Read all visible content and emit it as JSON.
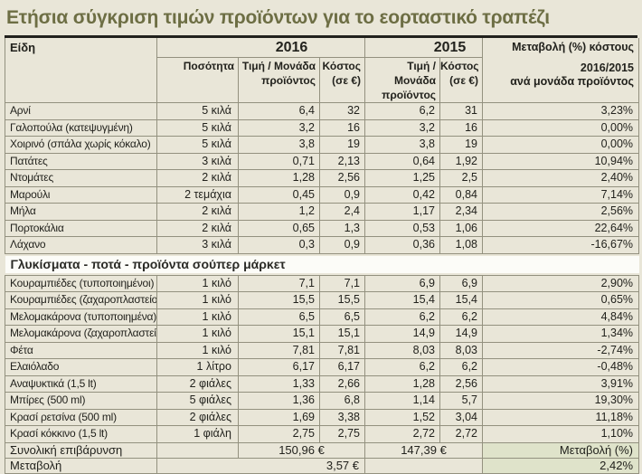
{
  "title": "Ετήσια σύγκριση τιμών προϊόντων για το εορταστικό τραπέζι",
  "colors": {
    "page_background": "#e9e6d8",
    "title_olive": "#6d6e44",
    "grid_border": "#93917f",
    "top_rule": "#21211d",
    "section_band_background": "#fcfcf8",
    "highlight_green": "#dfe3ca"
  },
  "chart_data": {
    "type": "table",
    "title": "Ετήσια σύγκριση τιμών προϊόντων για το εορταστικό τραπέζι",
    "headers": {
      "items": "Είδη",
      "year_2016": "2016",
      "year_2015": "2015",
      "quantity": "Ποσότητα",
      "price_per_unit": "Τιμή / Μονάδα προϊόντος",
      "cost": "Κόστος (σε €)",
      "change_line1": "Μεταβολή (%) κόστους",
      "change_rest": "2016/2015\nανά μονάδα προϊόντος"
    },
    "sections": [
      {
        "band": null,
        "rows": [
          {
            "name": "Αρνί",
            "qty": "5 κιλά",
            "price_2016": "6,4",
            "cost_2016": "32",
            "price_2015": "6,2",
            "cost_2015": "31",
            "change": "3,23%"
          },
          {
            "name": "Γαλοπούλα (κατεψυγμένη)",
            "qty": "5 κιλά",
            "price_2016": "3,2",
            "cost_2016": "16",
            "price_2015": "3,2",
            "cost_2015": "16",
            "change": "0,00%"
          },
          {
            "name": "Χοιρινό (σπάλα χωρίς κόκαλο)",
            "qty": "5 κιλά",
            "price_2016": "3,8",
            "cost_2016": "19",
            "price_2015": "3,8",
            "cost_2015": "19",
            "change": "0,00%"
          },
          {
            "name": "Πατάτες",
            "qty": "3 κιλά",
            "price_2016": "0,71",
            "cost_2016": "2,13",
            "price_2015": "0,64",
            "cost_2015": "1,92",
            "change": "10,94%"
          },
          {
            "name": "Ντομάτες",
            "qty": "2 κιλά",
            "price_2016": "1,28",
            "cost_2016": "2,56",
            "price_2015": "1,25",
            "cost_2015": "2,5",
            "change": "2,40%"
          },
          {
            "name": "Μαρούλι",
            "qty": "2 τεμάχια",
            "price_2016": "0,45",
            "cost_2016": "0,9",
            "price_2015": "0,42",
            "cost_2015": "0,84",
            "change": "7,14%"
          },
          {
            "name": "Μήλα",
            "qty": "2 κιλά",
            "price_2016": "1,2",
            "cost_2016": "2,4",
            "price_2015": "1,17",
            "cost_2015": "2,34",
            "change": "2,56%"
          },
          {
            "name": "Πορτοκάλια",
            "qty": "2 κιλά",
            "price_2016": "0,65",
            "cost_2016": "1,3",
            "price_2015": "0,53",
            "cost_2015": "1,06",
            "change": "22,64%"
          },
          {
            "name": "Λάχανο",
            "qty": "3 κιλά",
            "price_2016": "0,3",
            "cost_2016": "0,9",
            "price_2015": "0,36",
            "cost_2015": "1,08",
            "change": "-16,67%"
          }
        ]
      },
      {
        "band": "Γλυκίσματα - ποτά - προϊόντα σούπερ μάρκετ",
        "rows": [
          {
            "name": "Κουραμπιέδες (τυποποιημένοι)",
            "qty": "1 κιλό",
            "price_2016": "7,1",
            "cost_2016": "7,1",
            "price_2015": "6,9",
            "cost_2015": "6,9",
            "change": "2,90%"
          },
          {
            "name": "Κουραμπιέδες (ζαχαροπλαστείου)",
            "qty": "1 κιλό",
            "price_2016": "15,5",
            "cost_2016": "15,5",
            "price_2015": "15,4",
            "cost_2015": "15,4",
            "change": "0,65%"
          },
          {
            "name": "Μελομακάρονα (τυποποιημένα)",
            "qty": "1 κιλό",
            "price_2016": "6,5",
            "cost_2016": "6,5",
            "price_2015": "6,2",
            "cost_2015": "6,2",
            "change": "4,84%"
          },
          {
            "name": "Μελομακάρονα (ζαχαροπλαστείου)",
            "qty": "1 κιλό",
            "price_2016": "15,1",
            "cost_2016": "15,1",
            "price_2015": "14,9",
            "cost_2015": "14,9",
            "change": "1,34%"
          },
          {
            "name": "Φέτα",
            "qty": "1 κιλό",
            "price_2016": "7,81",
            "cost_2016": "7,81",
            "price_2015": "8,03",
            "cost_2015": "8,03",
            "change": "-2,74%"
          },
          {
            "name": "Ελαιόλαδο",
            "qty": "1 λίτρο",
            "price_2016": "6,17",
            "cost_2016": "6,17",
            "price_2015": "6,2",
            "cost_2015": "6,2",
            "change": "-0,48%"
          },
          {
            "name": "Αναψυκτικά (1,5 lt)",
            "qty": "2 φιάλες",
            "price_2016": "1,33",
            "cost_2016": "2,66",
            "price_2015": "1,28",
            "cost_2015": "2,56",
            "change": "3,91%"
          },
          {
            "name": "Μπίρες (500 ml)",
            "qty": "5 φιάλες",
            "price_2016": "1,36",
            "cost_2016": "6,8",
            "price_2015": "1,14",
            "cost_2015": "5,7",
            "change": "19,30%"
          },
          {
            "name": "Κρασί ρετσίνα (500 ml)",
            "qty": "2 φιάλες",
            "price_2016": "1,69",
            "cost_2016": "3,38",
            "price_2015": "1,52",
            "cost_2015": "3,04",
            "change": "11,18%"
          },
          {
            "name": "Κρασί κόκκινο (1,5 lt)",
            "qty": "1 φιάλη",
            "price_2016": "2,75",
            "cost_2016": "2,75",
            "price_2015": "2,72",
            "cost_2015": "2,72",
            "change": "1,10%"
          }
        ]
      }
    ],
    "totals": {
      "label": "Συνολική επιβάρυνση",
      "cost_2016": "150,96 €",
      "cost_2015": "147,39 €",
      "change_label": "Μεταβολή (%)"
    },
    "change_row": {
      "label": "Μεταβολή",
      "difference": "3,57 €",
      "value": "2,42%"
    }
  }
}
